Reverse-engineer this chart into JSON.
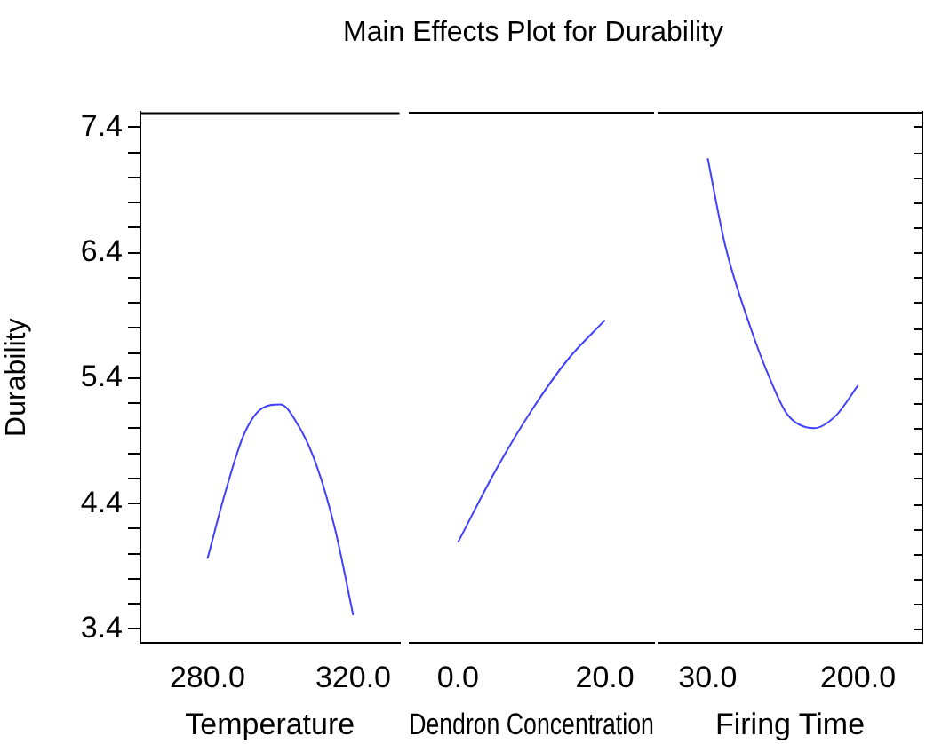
{
  "chart_data": [
    {
      "type": "line",
      "title": "Main Effects Plot for Durability",
      "xlabel": "Temperature",
      "ylabel": "Durability",
      "marker": "none",
      "grid": false,
      "x": [
        280,
        285,
        290,
        295,
        300,
        305,
        310,
        315,
        320
      ],
      "series": [
        {
          "color": "#4040ff",
          "values": [
            3.96,
            4.5,
            4.95,
            5.16,
            5.19,
            5.02,
            4.7,
            4.2,
            3.51
          ]
        }
      ],
      "xlim": [
        261.6,
        332.7
      ],
      "xticks": [
        {
          "value": 280,
          "label": "280.0"
        },
        {
          "value": 320,
          "label": "320.0"
        }
      ],
      "ylim": [
        3.29,
        7.52
      ],
      "yticks": [
        3.4,
        {
          "value": 3.6,
          "label": null
        },
        {
          "value": 3.8,
          "label": null
        },
        {
          "value": 4.0,
          "label": null
        },
        {
          "value": 4.2,
          "label": null
        },
        4.4,
        {
          "value": 4.6,
          "label": null
        },
        {
          "value": 4.8,
          "label": null
        },
        {
          "value": 5.0,
          "label": null
        },
        {
          "value": 5.2,
          "label": null
        },
        5.4,
        {
          "value": 5.6,
          "label": null
        },
        {
          "value": 5.8,
          "label": null
        },
        {
          "value": 6.0,
          "label": null
        },
        {
          "value": 6.2,
          "label": null
        },
        6.4,
        {
          "value": 6.6,
          "label": null
        },
        {
          "value": 6.8,
          "label": null
        },
        {
          "value": 7.0,
          "label": null
        },
        {
          "value": 7.2,
          "label": null
        },
        7.4
      ]
    },
    {
      "type": "line",
      "xlabel": "Dendron Concentration",
      "marker": "none",
      "grid": false,
      "tick_labels": "x",
      "x": [
        0,
        5,
        10,
        15,
        20
      ],
      "series": [
        {
          "color": "#4040ff",
          "values": [
            4.09,
            4.65,
            5.14,
            5.55,
            5.86
          ]
        }
      ],
      "xlim": [
        -6.7,
        26.7
      ],
      "xticks": [
        {
          "value": 0,
          "label": "0.0"
        },
        {
          "value": 20,
          "label": "20.0"
        }
      ],
      "ylim": [
        3.29,
        7.52
      ]
    },
    {
      "type": "line",
      "xlabel": "Firing Time",
      "marker": "none",
      "grid": false,
      "tick_labels": "x",
      "x": [
        30,
        50,
        78,
        100,
        120,
        150,
        175,
        200
      ],
      "series": [
        {
          "color": "#4040ff",
          "values": [
            7.15,
            6.45,
            5.81,
            5.4,
            5.11,
            5.0,
            5.1,
            5.34
          ]
        }
      ],
      "xlim": [
        -26.7,
        272.9
      ],
      "xticks": [
        {
          "value": 30,
          "label": "30.0"
        },
        {
          "value": 200,
          "label": "200.0"
        }
      ],
      "ylim": [
        3.29,
        7.52
      ],
      "yticks": [
        {
          "value": 3.4,
          "label": null
        },
        {
          "value": 3.6,
          "label": null
        },
        {
          "value": 3.8,
          "label": null
        },
        {
          "value": 4.0,
          "label": null
        },
        {
          "value": 4.2,
          "label": null
        },
        {
          "value": 4.4,
          "label": null
        },
        {
          "value": 4.6,
          "label": null
        },
        {
          "value": 4.8,
          "label": null
        },
        {
          "value": 5.0,
          "label": null
        },
        {
          "value": 5.2,
          "label": null
        },
        {
          "value": 5.4,
          "label": null
        },
        {
          "value": 5.6,
          "label": null
        },
        {
          "value": 5.8,
          "label": null
        },
        {
          "value": 6.0,
          "label": null
        },
        {
          "value": 6.2,
          "label": null
        },
        {
          "value": 6.4,
          "label": null
        },
        {
          "value": 6.6,
          "label": null
        },
        {
          "value": 6.8,
          "label": null
        },
        {
          "value": 7.0,
          "label": null
        },
        {
          "value": 7.2,
          "label": null
        },
        {
          "value": 7.4,
          "label": null
        }
      ]
    }
  ]
}
